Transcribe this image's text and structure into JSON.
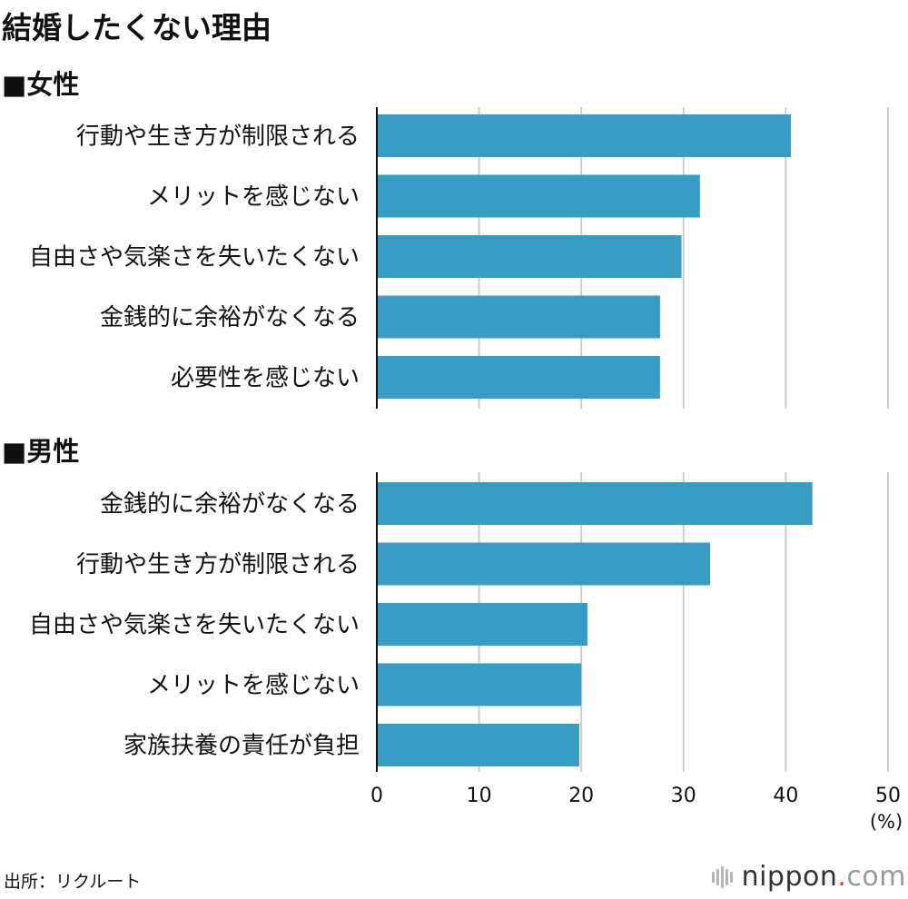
{
  "title": "結婚したくない理由",
  "source": "出所：リクルート",
  "logo": {
    "name": "nippon",
    "dot": ".",
    "tld": "com"
  },
  "chart_data": [
    {
      "type": "bar",
      "orientation": "horizontal",
      "title": "■女性",
      "categories": [
        "行動や生き方が制限される",
        "メリットを感じない",
        "自由さや気楽さを失いたくない",
        "金銭的に余裕がなくなる",
        "必要性を感じない"
      ],
      "values": [
        40.5,
        31.6,
        29.8,
        27.7,
        27.7
      ],
      "xlim": [
        0,
        50
      ],
      "grid": true
    },
    {
      "type": "bar",
      "orientation": "horizontal",
      "title": "■男性",
      "categories": [
        "金銭的に余裕がなくなる",
        "行動や生き方が制限される",
        "自由さや気楽さを失いたくない",
        "メリットを感じない",
        "家族扶養の責任が負担"
      ],
      "values": [
        42.6,
        32.6,
        20.6,
        20.0,
        19.8
      ],
      "xlim": [
        0,
        50
      ],
      "xticks": [
        0,
        10,
        20,
        30,
        40,
        50
      ],
      "xlabel": "(%)",
      "grid": true
    }
  ],
  "colors": {
    "bar": "#389dc4",
    "grid": "#cccccc",
    "axis": "#111111"
  }
}
